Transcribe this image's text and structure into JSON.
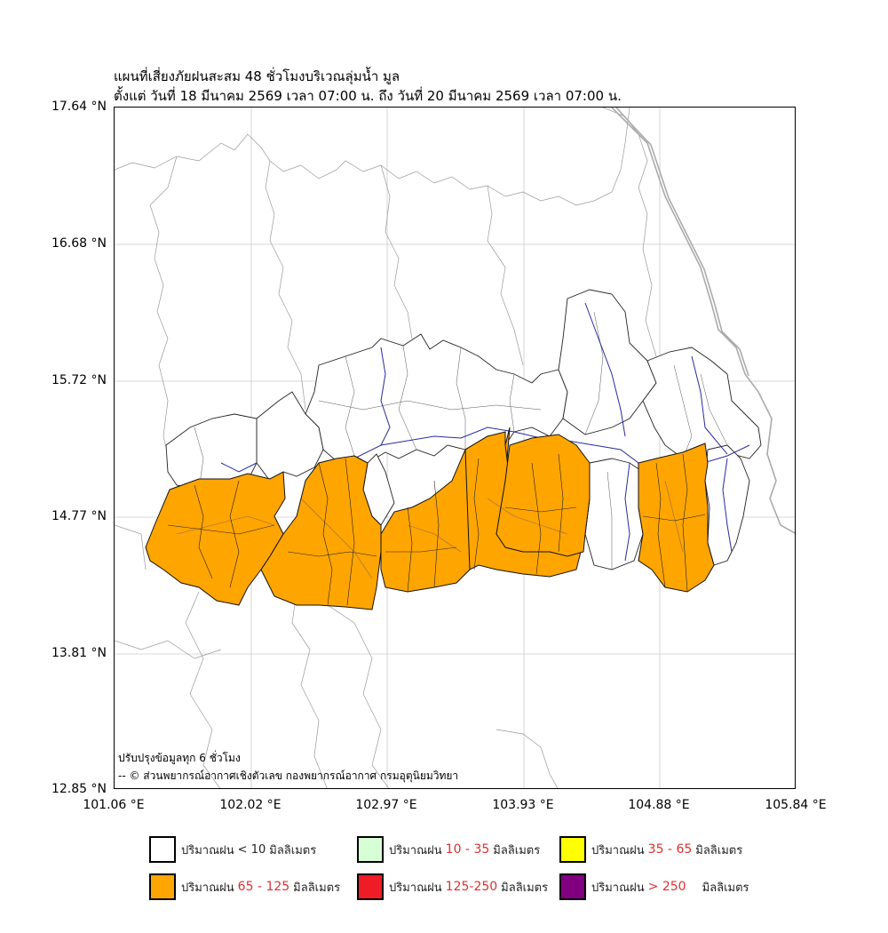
{
  "title": {
    "line1": "แผนที่เสี่ยงภัยฝนสะสม 48 ชั่วโมงบริเวณลุ่มน้ำ มูล",
    "line2": "ตั้งแต่ วันที่ 18 มีนาคม 2569 เวลา 07:00 น. ถึง วันที่ 20 มีนาคม 2569 เวลา 07:00 น."
  },
  "axes": {
    "y_ticks": [
      "17.64 °N",
      "16.68 °N",
      "15.72 °N",
      "14.77 °N",
      "13.81 °N",
      "12.85 °N"
    ],
    "x_ticks": [
      "101.06 °E",
      "102.02 °E",
      "102.97 °E",
      "103.93 °E",
      "104.88 °E",
      "105.84 °E"
    ]
  },
  "notes": {
    "update": "ปรับปรุงข้อมูลทุก 6 ชั่วโมง",
    "credit": "-- © ส่วนพยากรณ์อากาศเชิงตัวเลข กองพยากรณ์อากาศ กรมอุตุนิยมวิทยา"
  },
  "legend": [
    {
      "prefix": "ปริมาณฝน",
      "range": "< 10",
      "suffix": "มิลลิเมตร",
      "color": "#ffffff"
    },
    {
      "prefix": "ปริมาณฝน",
      "range": "10 - 35",
      "suffix": "มิลลิเมตร",
      "color": "#d6ffd6"
    },
    {
      "prefix": "ปริมาณฝน",
      "range": "35 - 65",
      "suffix": "มิลลิเมตร",
      "color": "#ffff00"
    },
    {
      "prefix": "ปริมาณฝน",
      "range": "65 - 125",
      "suffix": "มิลลิเมตร",
      "color": "#ffa500"
    },
    {
      "prefix": "ปริมาณฝน",
      "range": "125-250",
      "suffix": "มิลลิเมตร",
      "color": "#ee1c24"
    },
    {
      "prefix": "ปริมาณฝน",
      "range": "> 250",
      "suffix": "มิลลิเมตร",
      "color": "#800080"
    }
  ],
  "colors": {
    "risk_orange": "#ffa500",
    "river_blue": "#2a2aa0",
    "basin_border": "#222222",
    "admin_border": "#888888"
  }
}
